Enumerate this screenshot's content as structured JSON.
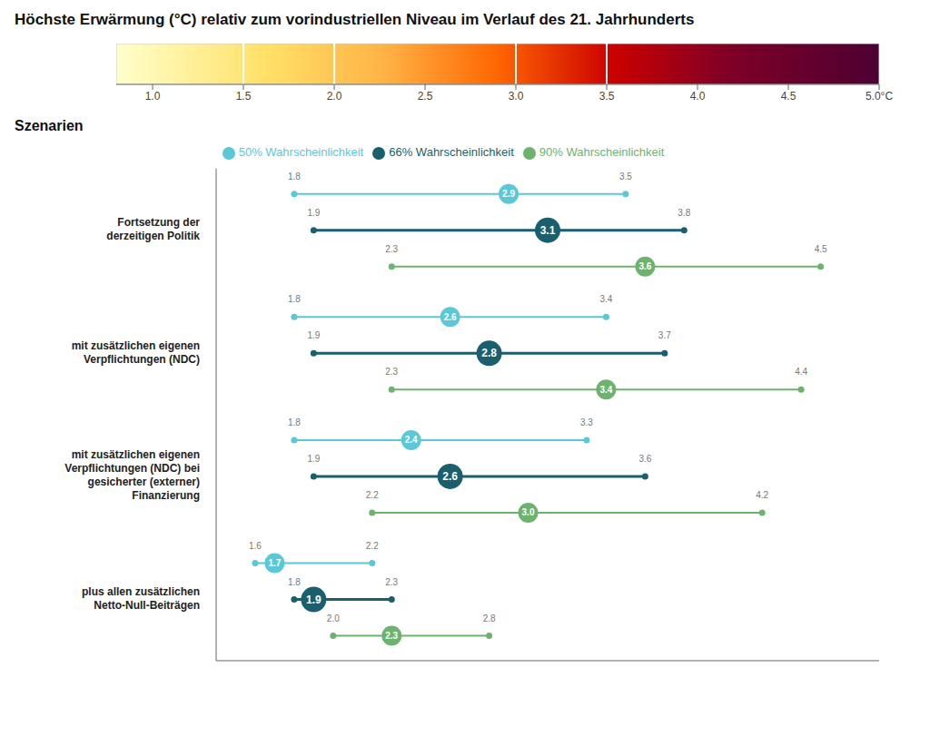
{
  "chart_data": [
    {
      "type": "colorbar",
      "title": "Höchste Erwärmung (°C) relativ zum vorindustriellen Niveau im Verlauf des 21. Jahrhunderts",
      "xlim": [
        0.8,
        5.0
      ],
      "xticks": [
        {
          "value": 1.0,
          "label": "1.0"
        },
        {
          "value": 1.5,
          "label": "1.5"
        },
        {
          "value": 2.0,
          "label": "2.0"
        },
        {
          "value": 2.5,
          "label": "2.5"
        },
        {
          "value": 3.0,
          "label": "3.0"
        },
        {
          "value": 3.5,
          "label": "3.5"
        },
        {
          "value": 4.0,
          "label": "4.0"
        },
        {
          "value": 4.5,
          "label": "4.5"
        },
        {
          "value": 5.0,
          "label": "5.0°C"
        }
      ],
      "colors": [
        "#ffffcc",
        "#ffe066",
        "#ffb347",
        "#ff6600",
        "#cc0000",
        "#800026",
        "#4d0033"
      ],
      "color_stops": [
        0.0,
        0.2,
        0.35,
        0.5,
        0.65,
        0.8,
        1.0
      ],
      "markers": {
        "values": [
          1.5,
          2.0,
          3.0,
          3.5
        ],
        "color": "#ffffff"
      }
    },
    {
      "type": "range",
      "subtitle": "Szenarien",
      "orientation": "horizontal",
      "categories": [
        "Fortsetzung der\nderzeitigen Politik",
        "mit zusätzlichen eigenen\nVerpflichtungen (NDC)",
        "mit zusätzlichen eigenen\nVerpflichtungen (NDC) bei\ngesicherter (externer)\nFinanzierung",
        "plus allen zusätzlichen\nNetto-Null-Beiträgen"
      ],
      "series": [
        {
          "name": "50% Wahrscheinlichkeit",
          "color": "#5bc8d8",
          "values": [
            2.9,
            2.6,
            2.4,
            1.7
          ],
          "low": [
            1.8,
            1.8,
            1.8,
            1.6
          ],
          "high": [
            3.5,
            3.4,
            3.3,
            2.2
          ]
        },
        {
          "name": "66% Wahrscheinlichkeit",
          "color": "#1a5f6e",
          "values": [
            3.1,
            2.8,
            2.6,
            1.9
          ],
          "low": [
            1.9,
            1.9,
            1.9,
            1.8
          ],
          "high": [
            3.8,
            3.7,
            3.6,
            2.3
          ]
        },
        {
          "name": "90% Wahrscheinlichkeit",
          "color": "#6db36d",
          "values": [
            3.6,
            3.4,
            3.0,
            2.3
          ],
          "low": [
            2.3,
            2.3,
            2.2,
            2.0
          ],
          "high": [
            4.5,
            4.4,
            4.2,
            2.8
          ]
        }
      ],
      "xlim": [
        1.4,
        4.8
      ],
      "data_labels": true,
      "tick_labels": "y",
      "legend": "top"
    }
  ]
}
